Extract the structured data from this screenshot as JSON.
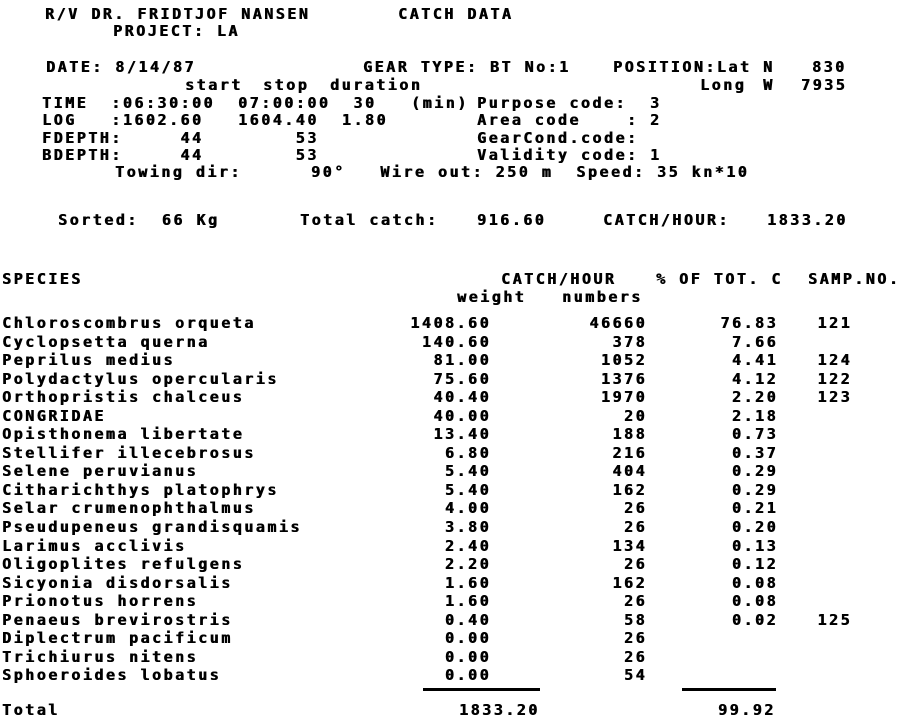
{
  "doc": {
    "vessel": "R/V DR. FRIDTJOF NANSEN",
    "title": "CATCH DATA",
    "project": "PROJECT: LA",
    "date": "DATE: 8/14/87",
    "gear_type": "GEAR TYPE: BT No:1",
    "position_label": "POSITION:Lat",
    "lat_hemisphere": "N",
    "lat_value": "830",
    "long_label": "Long",
    "long_hemisphere": "W",
    "long_value": "7935",
    "col_start": "start",
    "col_stop": "stop",
    "col_duration": "duration",
    "time_line": "TIME  :06:30:00  07:00:00  30   (min)",
    "log_line": "LOG   :1602.60   1604.40  1.80",
    "fdepth_line": "FDEPTH:     44        53",
    "bdepth_line": "BDEPTH:     44        53",
    "towing_line": "Towing dir:      90°   Wire out: 250 m  Speed: 35 kn*10",
    "purpose_line": "Purpose code:  3",
    "area_line": "Area code    : 2",
    "gearcond_line": "GearCond.code:",
    "validity_line": "Validity code: 1",
    "sorted": "Sorted:  66 Kg",
    "total_catch_label": "Total catch:",
    "total_catch_value": "916.60",
    "catch_hour_label": "CATCH/HOUR:",
    "catch_hour_value": "1833.20"
  },
  "table": {
    "header": {
      "species": "SPECIES",
      "catch_hour": "CATCH/HOUR",
      "pct": "% OF TOT. C",
      "samp": "SAMP.NO.",
      "weight": "weight",
      "numbers": "numbers"
    },
    "rows": [
      {
        "name": "Chloroscombrus orqueta",
        "weight": "1408.60",
        "numbers": "46660",
        "pct": "76.83",
        "samp": "121"
      },
      {
        "name": "Cyclopsetta querna",
        "weight": "140.60",
        "numbers": "378",
        "pct": "7.66",
        "samp": ""
      },
      {
        "name": "Peprilus medius",
        "weight": "81.00",
        "numbers": "1052",
        "pct": "4.41",
        "samp": "124"
      },
      {
        "name": "Polydactylus opercularis",
        "weight": "75.60",
        "numbers": "1376",
        "pct": "4.12",
        "samp": "122"
      },
      {
        "name": "Orthopristis chalceus",
        "weight": "40.40",
        "numbers": "1970",
        "pct": "2.20",
        "samp": "123"
      },
      {
        "name": "CONGRIDAE",
        "weight": "40.00",
        "numbers": "20",
        "pct": "2.18",
        "samp": ""
      },
      {
        "name": "Opisthonema libertate",
        "weight": "13.40",
        "numbers": "188",
        "pct": "0.73",
        "samp": ""
      },
      {
        "name": "Stellifer illecebrosus",
        "weight": "6.80",
        "numbers": "216",
        "pct": "0.37",
        "samp": ""
      },
      {
        "name": "Selene peruvianus",
        "weight": "5.40",
        "numbers": "404",
        "pct": "0.29",
        "samp": ""
      },
      {
        "name": "Citharichthys platophrys",
        "weight": "5.40",
        "numbers": "162",
        "pct": "0.29",
        "samp": ""
      },
      {
        "name": "Selar crumenophthalmus",
        "weight": "4.00",
        "numbers": "26",
        "pct": "0.21",
        "samp": ""
      },
      {
        "name": "Pseudupeneus grandisquamis",
        "weight": "3.80",
        "numbers": "26",
        "pct": "0.20",
        "samp": ""
      },
      {
        "name": "Larimus acclivis",
        "weight": "2.40",
        "numbers": "134",
        "pct": "0.13",
        "samp": ""
      },
      {
        "name": "Oligoplites refulgens",
        "weight": "2.20",
        "numbers": "26",
        "pct": "0.12",
        "samp": ""
      },
      {
        "name": "Sicyonia disdorsalis",
        "weight": "1.60",
        "numbers": "162",
        "pct": "0.08",
        "samp": ""
      },
      {
        "name": "Prionotus horrens",
        "weight": "1.60",
        "numbers": "26",
        "pct": "0.08",
        "samp": ""
      },
      {
        "name": "Penaeus brevirostris",
        "weight": "0.40",
        "numbers": "58",
        "pct": "0.02",
        "samp": "125"
      },
      {
        "name": "Diplectrum pacificum",
        "weight": "0.00",
        "numbers": "26",
        "pct": "",
        "samp": ""
      },
      {
        "name": "Trichiurus nitens",
        "weight": "0.00",
        "numbers": "26",
        "pct": "",
        "samp": ""
      },
      {
        "name": "Sphoeroides lobatus",
        "weight": "0.00",
        "numbers": "54",
        "pct": "",
        "samp": ""
      }
    ],
    "total": {
      "label": "Total",
      "weight": "1833.20",
      "pct": "99.92"
    }
  },
  "colors": {
    "ink": "#000000",
    "paper": "#ffffff"
  }
}
